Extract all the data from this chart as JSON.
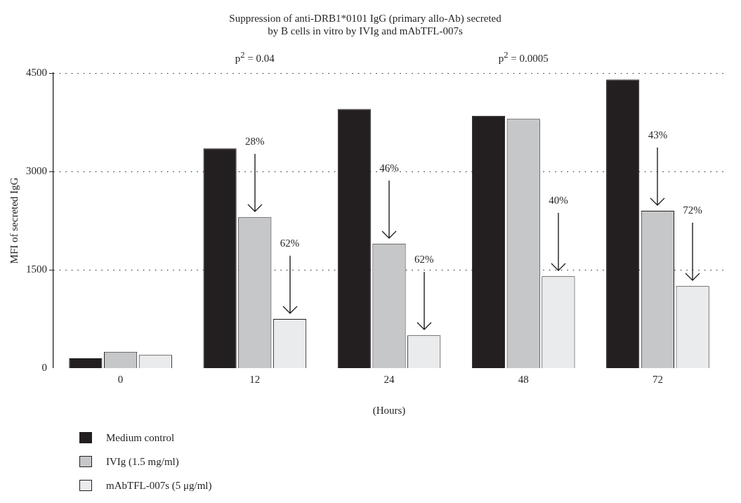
{
  "chart_data": {
    "type": "bar",
    "title": "Suppression of anti-DRB1*0101 IgG (primary allo-Ab) secreted\nby B cells in vitro by IVIg and mAbTFL-007s",
    "xlabel": "(Hours)",
    "ylabel": "MFI of secreted IgG",
    "categories": [
      "0",
      "12",
      "24",
      "48",
      "72"
    ],
    "series": [
      {
        "name": "Medium control",
        "color": "#231f20",
        "values": [
          150,
          3350,
          3950,
          3850,
          4400
        ]
      },
      {
        "name": "IVIg (1.5 mg/ml)",
        "color": "#c6c7c9",
        "values": [
          250,
          2300,
          1900,
          3800,
          2400
        ]
      },
      {
        "name": "mAbTFL-007s (5 μg/ml)",
        "color": "#eaebec",
        "values": [
          200,
          750,
          500,
          1400,
          1250
        ]
      }
    ],
    "ylim": [
      0,
      4500
    ],
    "yticks": [
      0,
      1500,
      3000,
      4500
    ],
    "grid": "y",
    "legend": "bottom",
    "annotations": [
      "p$^{2}$ = 0.04",
      "p$^{2}$ = 0.0005",
      "28%",
      "62%",
      "46%",
      "62%",
      "40%",
      "43%",
      "72%"
    ]
  }
}
